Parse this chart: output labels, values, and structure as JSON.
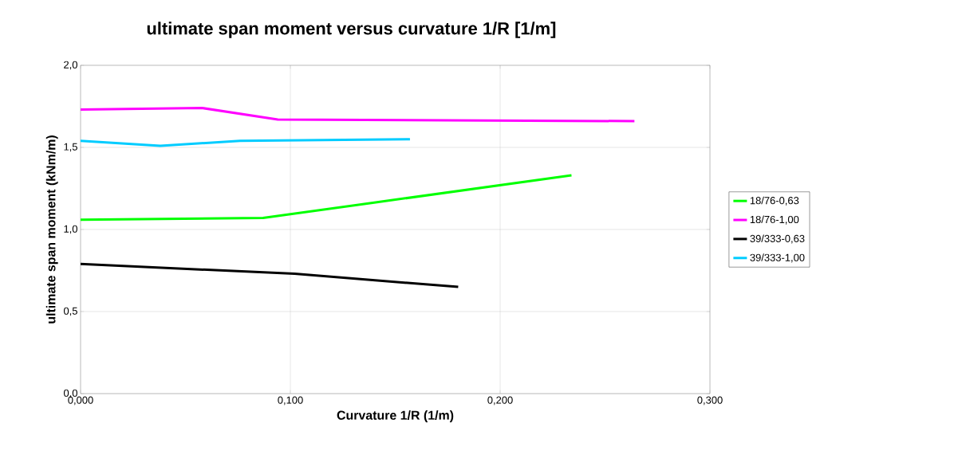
{
  "chart_data": {
    "type": "line",
    "title": "ultimate span moment versus curvature 1/R [1/m]",
    "xlabel": "Curvature 1/R (1/m)",
    "ylabel": "ultimate span moment (kNm/m)",
    "series": [
      {
        "name": "18/76-0,63",
        "color": "#00ff00",
        "x": [
          0.0,
          0.087,
          0.234
        ],
        "values": [
          1.06,
          1.07,
          1.33
        ]
      },
      {
        "name": "18/76-1,00",
        "color": "#ff00ff",
        "x": [
          0.0,
          0.058,
          0.094,
          0.264
        ],
        "values": [
          1.73,
          1.74,
          1.67,
          1.66
        ]
      },
      {
        "name": "39/333-0,63",
        "color": "#000000",
        "x": [
          0.0,
          0.102,
          0.18
        ],
        "values": [
          0.79,
          0.73,
          0.65
        ]
      },
      {
        "name": "39/333-1,00",
        "color": "#00ccff",
        "x": [
          0.0,
          0.038,
          0.076,
          0.157
        ],
        "values": [
          1.54,
          1.51,
          1.54,
          1.55
        ]
      }
    ],
    "xlim": [
      0,
      0.3
    ],
    "ylim": [
      0,
      2
    ],
    "xticks": [
      {
        "value": 0,
        "label": "0,000"
      },
      {
        "value": 0.1,
        "label": "0,100"
      },
      {
        "value": 0.2,
        "label": "0,200"
      },
      {
        "value": 0.3,
        "label": "0,300"
      }
    ],
    "yticks": [
      {
        "value": 0,
        "label": "0,0"
      },
      {
        "value": 0.5,
        "label": "0,5"
      },
      {
        "value": 1,
        "label": "1,0"
      },
      {
        "value": 1.5,
        "label": "1,5"
      },
      {
        "value": 2,
        "label": "2,0"
      }
    ],
    "grid": true,
    "legend": "right",
    "marker": "none",
    "line_style": "solid"
  }
}
